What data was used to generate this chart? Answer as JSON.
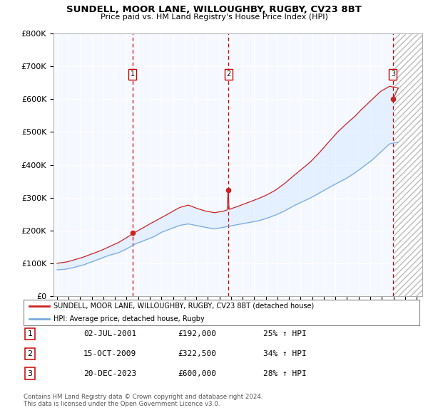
{
  "title": "SUNDELL, MOOR LANE, WILLOUGHBY, RUGBY, CV23 8BT",
  "subtitle": "Price paid vs. HM Land Registry's House Price Index (HPI)",
  "legend_label_red": "SUNDELL, MOOR LANE, WILLOUGHBY, RUGBY, CV23 8BT (detached house)",
  "legend_label_blue": "HPI: Average price, detached house, Rugby",
  "footer1": "Contains HM Land Registry data © Crown copyright and database right 2024.",
  "footer2": "This data is licensed under the Open Government Licence v3.0.",
  "transactions": [
    {
      "num": 1,
      "date": "02-JUL-2001",
      "price": "£192,000",
      "pct": "25% ↑ HPI",
      "year": 2001.5
    },
    {
      "num": 2,
      "date": "15-OCT-2009",
      "price": "£322,500",
      "pct": "34% ↑ HPI",
      "year": 2009.79
    },
    {
      "num": 3,
      "date": "20-DEC-2023",
      "price": "£600,000",
      "pct": "28% ↑ HPI",
      "year": 2023.96
    }
  ],
  "transaction_prices": [
    192000,
    322500,
    600000
  ],
  "hpi_color": "#7aaadd",
  "price_color": "#cc2222",
  "background_color": "#f5f8ff",
  "fill_color": "#ddeeff",
  "hatch_color": "#cccccc",
  "ylim_max": 800000,
  "xlim_start": 1994.7,
  "xlim_end": 2026.5,
  "future_start": 2024.0,
  "yticks": [
    0,
    100000,
    200000,
    300000,
    400000,
    500000,
    600000,
    700000,
    800000
  ],
  "ylabels": [
    "£0",
    "£100K",
    "£200K",
    "£300K",
    "£400K",
    "£500K",
    "£600K",
    "£700K",
    "£800K"
  ]
}
